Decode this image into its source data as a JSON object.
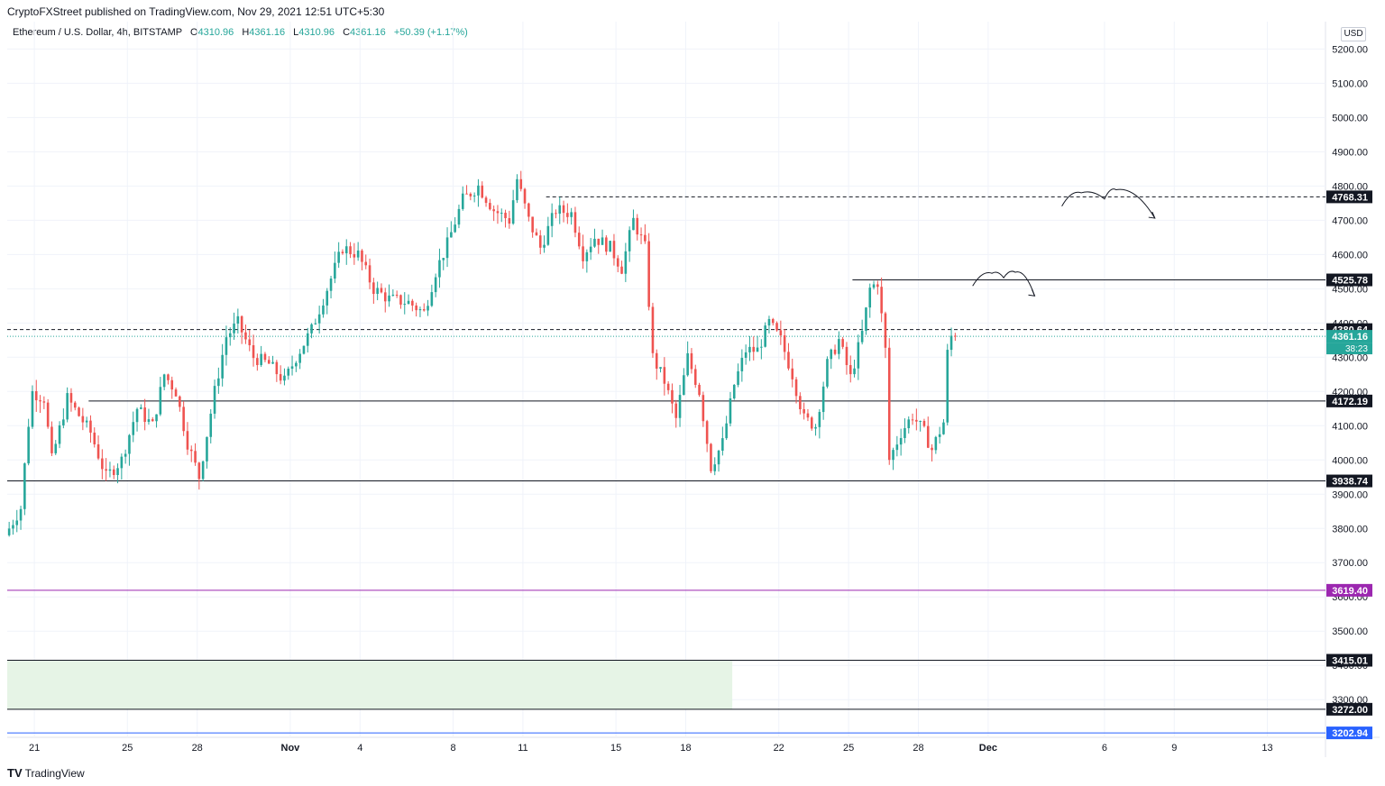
{
  "header": {
    "text": "CryptoFXStreet published on TradingView.com, Nov 29, 2021 12:51 UTC+5:30"
  },
  "legend": {
    "symbol": "Ethereum / U.S. Dollar, 4h, BITSTAMP",
    "open_label": "O",
    "open": "4310.96",
    "high_label": "H",
    "high": "4361.16",
    "low_label": "L",
    "low": "4310.96",
    "close_label": "C",
    "close": "4361.16",
    "change": "+50.39 (+1.17%)"
  },
  "unit": "USD",
  "footer": {
    "logo": "TV",
    "brand": "TradingView"
  },
  "colors": {
    "up": "#26a69a",
    "down": "#ef5350",
    "level": "#131722",
    "purple": "#9c27b0",
    "blue": "#2962ff",
    "zone": "#e6f4e6",
    "grid": "#f0f3fa"
  },
  "chart_data": {
    "type": "candlestick",
    "title": "",
    "ylim": [
      3190,
      5280
    ],
    "y_ticks": [
      3300,
      3400,
      3500,
      3600,
      3700,
      3800,
      3900,
      4000,
      4100,
      4200,
      4300,
      4400,
      4500,
      4600,
      4700,
      4800,
      4900,
      5000,
      5100,
      5200
    ],
    "x_ticks": [
      {
        "label": "21",
        "x": "2021-10-21"
      },
      {
        "label": "25",
        "x": "2021-10-25"
      },
      {
        "label": "28",
        "x": "2021-10-28"
      },
      {
        "label": "Nov",
        "x": "2021-11-01"
      },
      {
        "label": "4",
        "x": "2021-11-04"
      },
      {
        "label": "8",
        "x": "2021-11-08"
      },
      {
        "label": "11",
        "x": "2021-11-11"
      },
      {
        "label": "15",
        "x": "2021-11-15"
      },
      {
        "label": "18",
        "x": "2021-11-18"
      },
      {
        "label": "22",
        "x": "2021-11-22"
      },
      {
        "label": "25",
        "x": "2021-11-25"
      },
      {
        "label": "28",
        "x": "2021-11-28"
      },
      {
        "label": "Dec",
        "x": "2021-12-01"
      },
      {
        "label": "6",
        "x": "2021-12-06"
      },
      {
        "label": "9",
        "x": "2021-12-09"
      },
      {
        "label": "13",
        "x": "2021-12-13"
      }
    ],
    "x_range": [
      "2021-10-19T20:00",
      "2021-12-15T12:00"
    ],
    "price_path": [
      [
        "2021-10-19T20:00",
        3780
      ],
      [
        "2021-10-20T12:00",
        3860
      ],
      [
        "2021-10-20T23:00",
        4200
      ],
      [
        "2021-10-21T12:00",
        4180
      ],
      [
        "2021-10-21T20:00",
        4000
      ],
      [
        "2021-10-22T12:00",
        4180
      ],
      [
        "2021-10-23T12:00",
        4080
      ],
      [
        "2021-10-24T04:00",
        3950
      ],
      [
        "2021-10-24T20:00",
        4000
      ],
      [
        "2021-10-25T12:00",
        4150
      ],
      [
        "2021-10-26T04:00",
        4100
      ],
      [
        "2021-10-26T16:00",
        4250
      ],
      [
        "2021-10-27T04:00",
        4200
      ],
      [
        "2021-10-27T16:00",
        4050
      ],
      [
        "2021-10-28T04:00",
        3950
      ],
      [
        "2021-10-28T20:00",
        4200
      ],
      [
        "2021-10-29T08:00",
        4360
      ],
      [
        "2021-10-29T20:00",
        4400
      ],
      [
        "2021-10-30T12:00",
        4300
      ],
      [
        "2021-10-31T04:00",
        4280
      ],
      [
        "2021-10-31T20:00",
        4230
      ],
      [
        "2021-11-01T08:00",
        4300
      ],
      [
        "2021-11-02T00:00",
        4380
      ],
      [
        "2021-11-02T16:00",
        4500
      ],
      [
        "2021-11-03T08:00",
        4620
      ],
      [
        "2021-11-04T00:00",
        4600
      ],
      [
        "2021-11-04T16:00",
        4500
      ],
      [
        "2021-11-05T08:00",
        4470
      ],
      [
        "2021-11-06T04:00",
        4460
      ],
      [
        "2021-11-06T20:00",
        4430
      ],
      [
        "2021-11-07T08:00",
        4550
      ],
      [
        "2021-11-07T20:00",
        4630
      ],
      [
        "2021-11-08T12:00",
        4760
      ],
      [
        "2021-11-09T04:00",
        4800
      ],
      [
        "2021-11-09T20:00",
        4730
      ],
      [
        "2021-11-10T12:00",
        4700
      ],
      [
        "2021-11-10T20:00",
        4820
      ],
      [
        "2021-11-11T08:00",
        4700
      ],
      [
        "2021-11-11T20:00",
        4620
      ],
      [
        "2021-11-12T12:00",
        4730
      ],
      [
        "2021-11-13T04:00",
        4720
      ],
      [
        "2021-11-13T16:00",
        4600
      ],
      [
        "2021-11-14T04:00",
        4650
      ],
      [
        "2021-11-14T20:00",
        4620
      ],
      [
        "2021-11-15T08:00",
        4560
      ],
      [
        "2021-11-15T20:00",
        4700
      ],
      [
        "2021-11-16T08:00",
        4620
      ],
      [
        "2021-11-16T16:00",
        4300
      ],
      [
        "2021-11-17T04:00",
        4230
      ],
      [
        "2021-11-17T16:00",
        4120
      ],
      [
        "2021-11-18T04:00",
        4300
      ],
      [
        "2021-11-18T16:00",
        4200
      ],
      [
        "2021-11-19T04:00",
        3980
      ],
      [
        "2021-11-19T16:00",
        4050
      ],
      [
        "2021-11-20T04:00",
        4220
      ],
      [
        "2021-11-20T16:00",
        4320
      ],
      [
        "2021-11-21T04:00",
        4320
      ],
      [
        "2021-11-21T16:00",
        4400
      ],
      [
        "2021-11-22T04:00",
        4350
      ],
      [
        "2021-11-22T16:00",
        4250
      ],
      [
        "2021-11-23T04:00",
        4120
      ],
      [
        "2021-11-23T16:00",
        4100
      ],
      [
        "2021-11-24T04:00",
        4280
      ],
      [
        "2021-11-24T16:00",
        4350
      ],
      [
        "2021-11-25T04:00",
        4240
      ],
      [
        "2021-11-25T16:00",
        4370
      ],
      [
        "2021-11-26T00:00",
        4500
      ],
      [
        "2021-11-26T08:00",
        4520
      ],
      [
        "2021-11-26T16:00",
        4320
      ],
      [
        "2021-11-26T20:00",
        4000
      ],
      [
        "2021-11-27T08:00",
        4080
      ],
      [
        "2021-11-27T20:00",
        4130
      ],
      [
        "2021-11-28T08:00",
        4080
      ],
      [
        "2021-11-28T16:00",
        4030
      ],
      [
        "2021-11-29T04:00",
        4110
      ],
      [
        "2021-11-29T08:00",
        4311
      ],
      [
        "2021-11-29T12:00",
        4361
      ]
    ],
    "levels": [
      {
        "value": 4768.31,
        "label": "4768.31",
        "style": "dashed",
        "color": "#131722",
        "from": "2021-11-12T00:00"
      },
      {
        "value": 4525.78,
        "label": "4525.78",
        "style": "solid",
        "color": "#131722",
        "from": "2021-11-25T04:00"
      },
      {
        "value": 4380.64,
        "label": "4380.64",
        "style": "dashed",
        "color": "#131722",
        "from": "2021-10-19T20:00"
      },
      {
        "value": 4172.19,
        "label": "4172.19",
        "style": "solid",
        "color": "#131722",
        "from": "2021-10-23T08:00"
      },
      {
        "value": 3938.74,
        "label": "3938.74",
        "style": "solid",
        "color": "#131722",
        "from": "2021-10-19T20:00"
      },
      {
        "value": 3619.4,
        "label": "3619.40",
        "style": "solid",
        "color": "#9c27b0",
        "from": "2021-10-19T20:00"
      },
      {
        "value": 3415.01,
        "label": "3415.01",
        "style": "solid",
        "color": "#131722",
        "from": "2021-10-19T20:00"
      },
      {
        "value": 3272.0,
        "label": "3272.00",
        "style": "solid",
        "color": "#131722",
        "from": "2021-10-19T20:00"
      },
      {
        "value": 3202.94,
        "label": "3202.94",
        "style": "solid",
        "color": "#2962ff",
        "from": "2021-10-19T20:00"
      }
    ],
    "zone": {
      "from": "2021-10-19T20:00",
      "to": "2021-11-20T00:00",
      "y1": 3272.0,
      "y2": 3415.01,
      "color": "#e6f4e6"
    },
    "last_price": {
      "value": 4361.16,
      "label": "4361.16",
      "countdown": "38:23",
      "color": "#26a69a"
    },
    "projections": [
      {
        "start": [
          "2021-12-04T04:00",
          4741
        ],
        "peaks": [
          [
            "2021-12-05T00:00",
            4780
          ],
          [
            "2021-12-06T00:00",
            4762
          ],
          [
            "2021-12-06T12:00",
            4789
          ]
        ],
        "end": [
          "2021-12-08T04:00",
          4706
        ]
      },
      {
        "start": [
          "2021-11-30T08:00",
          4508
        ],
        "peaks": [
          [
            "2021-12-01T04:00",
            4545
          ],
          [
            "2021-12-01T16:00",
            4532
          ],
          [
            "2021-12-02T04:00",
            4548
          ]
        ],
        "end": [
          "2021-12-03T00:00",
          4479
        ]
      }
    ],
    "grid": true,
    "legend": "none"
  }
}
